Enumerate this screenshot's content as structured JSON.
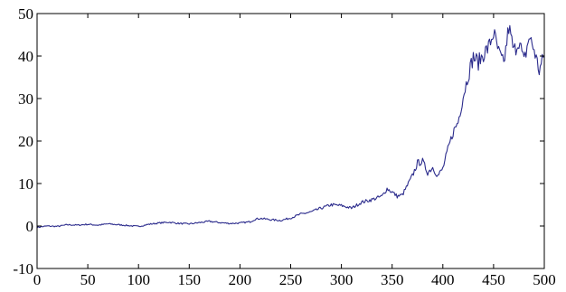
{
  "chart_data": {
    "type": "line",
    "title": "",
    "xlabel": "",
    "ylabel": "",
    "xlim": [
      0,
      500
    ],
    "ylim": [
      -10,
      50
    ],
    "xticks": [
      0,
      50,
      100,
      150,
      200,
      250,
      300,
      350,
      400,
      450,
      500
    ],
    "yticks": [
      -10,
      0,
      10,
      20,
      30,
      40,
      50
    ],
    "grid": false,
    "legend": "none",
    "series": [
      {
        "color": "#2b2b8c",
        "points": [
          [
            0,
            -0.3
          ],
          [
            10,
            0.0
          ],
          [
            20,
            -0.1
          ],
          [
            30,
            0.3
          ],
          [
            40,
            0.2
          ],
          [
            50,
            0.4
          ],
          [
            60,
            0.2
          ],
          [
            70,
            0.5
          ],
          [
            80,
            0.3
          ],
          [
            90,
            0.1
          ],
          [
            100,
            -0.1
          ],
          [
            110,
            0.4
          ],
          [
            120,
            0.7
          ],
          [
            130,
            0.9
          ],
          [
            140,
            0.6
          ],
          [
            150,
            0.5
          ],
          [
            160,
            0.8
          ],
          [
            170,
            1.1
          ],
          [
            180,
            0.8
          ],
          [
            190,
            0.6
          ],
          [
            200,
            0.7
          ],
          [
            210,
            1.0
          ],
          [
            215,
            1.6
          ],
          [
            220,
            1.8
          ],
          [
            230,
            1.5
          ],
          [
            240,
            1.3
          ],
          [
            250,
            1.9
          ],
          [
            260,
            2.8
          ],
          [
            270,
            3.3
          ],
          [
            280,
            4.2
          ],
          [
            290,
            5.0
          ],
          [
            300,
            4.8
          ],
          [
            310,
            4.2
          ],
          [
            320,
            5.6
          ],
          [
            330,
            6.2
          ],
          [
            340,
            7.0
          ],
          [
            345,
            8.8
          ],
          [
            350,
            8.0
          ],
          [
            355,
            7.0
          ],
          [
            360,
            7.3
          ],
          [
            365,
            9.5
          ],
          [
            370,
            11.8
          ],
          [
            375,
            14.8
          ],
          [
            380,
            15.2
          ],
          [
            385,
            12.6
          ],
          [
            390,
            13.8
          ],
          [
            395,
            11.8
          ],
          [
            400,
            13.5
          ],
          [
            405,
            18.0
          ],
          [
            410,
            22.0
          ],
          [
            415,
            24.5
          ],
          [
            420,
            30.5
          ],
          [
            425,
            35.5
          ],
          [
            430,
            39.8
          ],
          [
            435,
            38.5
          ],
          [
            440,
            40.5
          ],
          [
            445,
            42.0
          ],
          [
            450,
            45.5
          ],
          [
            455,
            40.8
          ],
          [
            460,
            38.0
          ],
          [
            465,
            46.8
          ],
          [
            470,
            41.0
          ],
          [
            475,
            43.8
          ],
          [
            480,
            38.5
          ],
          [
            485,
            44.5
          ],
          [
            490,
            41.5
          ],
          [
            495,
            36.5
          ],
          [
            500,
            40.2
          ]
        ]
      }
    ]
  }
}
